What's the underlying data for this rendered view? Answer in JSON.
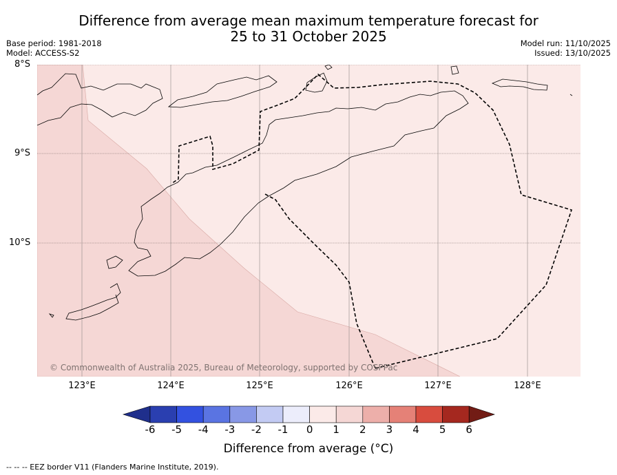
{
  "title": "Difference from average mean maximum temperature forecast for\n25 to 31 October 2025",
  "meta": {
    "base_period": "Base period: 1981-2018",
    "model": "Model: ACCESS-S2",
    "model_run": "Model run: 11/10/2025",
    "issued": "Issued: 13/10/2025"
  },
  "map": {
    "lat_labels": [
      "8°S",
      "9°S",
      "10°S"
    ],
    "lon_labels": [
      "123°E",
      "124°E",
      "125°E",
      "126°E",
      "127°E",
      "128°E"
    ],
    "copyright": "© Commonwealth of Australia 2025, Bureau of Meteorology, supported by COSPPac",
    "regions": [
      {
        "name": "southwest-zone",
        "category": "1 to 2",
        "color": "#f5d7d5"
      },
      {
        "name": "northeast-zone",
        "category": "0 to 1",
        "color": "#fbeae8"
      }
    ]
  },
  "colorbar": {
    "label": "Difference from average (°C)",
    "ticks": [
      "-6",
      "-5",
      "-4",
      "-3",
      "-2",
      "-1",
      "0",
      "1",
      "2",
      "3",
      "4",
      "5",
      "6"
    ],
    "colors": [
      "#1f2f8c",
      "#2a3fb0",
      "#3351e0",
      "#5a74e2",
      "#8898e6",
      "#c3cbf3",
      "#ecedfb",
      "#fbeae8",
      "#f5d7d5",
      "#edafaa",
      "#e58177",
      "#d84c3e",
      "#a5281f",
      "#721c15"
    ]
  },
  "footnote": "--  --  -- EEZ border V11 (Flanders Marine Institute, 2019)."
}
